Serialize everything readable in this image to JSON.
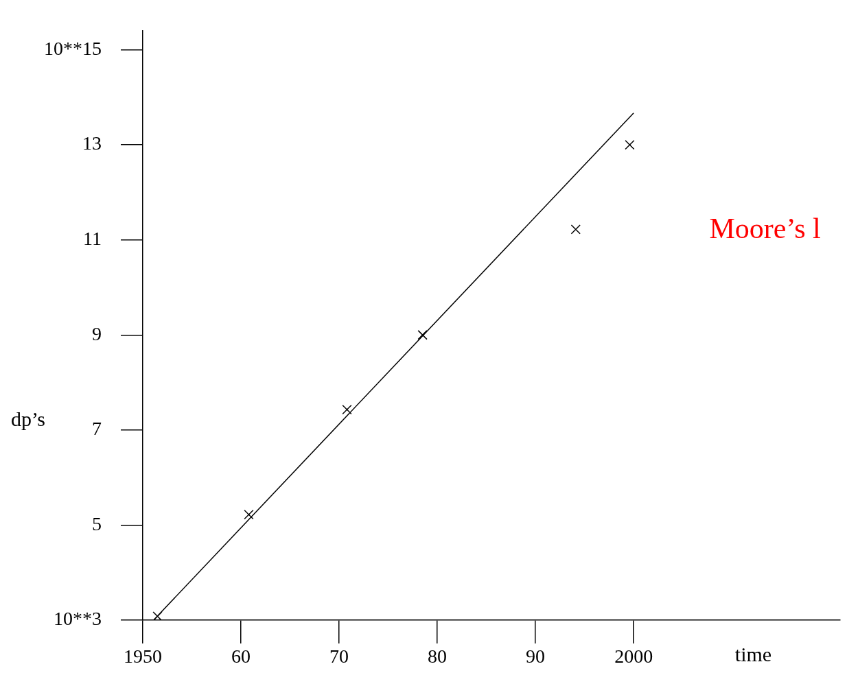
{
  "chart_data": {
    "type": "scatter",
    "xlabel": "time",
    "ylabel": "dp’s",
    "annotations": [
      "Moore’s l"
    ],
    "xlim": [
      1950,
      2021
    ],
    "ylim": [
      3,
      15.4
    ],
    "xticks": [
      1950,
      {
        "value": 1960,
        "label": "60"
      },
      {
        "value": 1970,
        "label": "70"
      },
      {
        "value": 1980,
        "label": "80"
      },
      {
        "value": 1990,
        "label": "90"
      },
      2000
    ],
    "yticks": [
      {
        "value": 3,
        "label": "10**3"
      },
      5,
      7,
      9,
      11,
      13,
      {
        "value": 15,
        "label": "10**15"
      }
    ],
    "grid": false,
    "legend": false,
    "series": [
      {
        "type": "scatter",
        "marker": "cross",
        "color": "#000000",
        "x": [
          1951.5,
          1960.8,
          1970.8,
          1978.5,
          1994.1,
          1999.6
        ],
        "values": [
          3.08,
          5.22,
          7.43,
          9.0,
          11.22,
          13.0
        ]
      },
      {
        "type": "line",
        "marker": "none",
        "color": "#000000",
        "x": [
          1951.1,
          2000
        ],
        "values": [
          3.0,
          13.67
        ]
      }
    ]
  }
}
